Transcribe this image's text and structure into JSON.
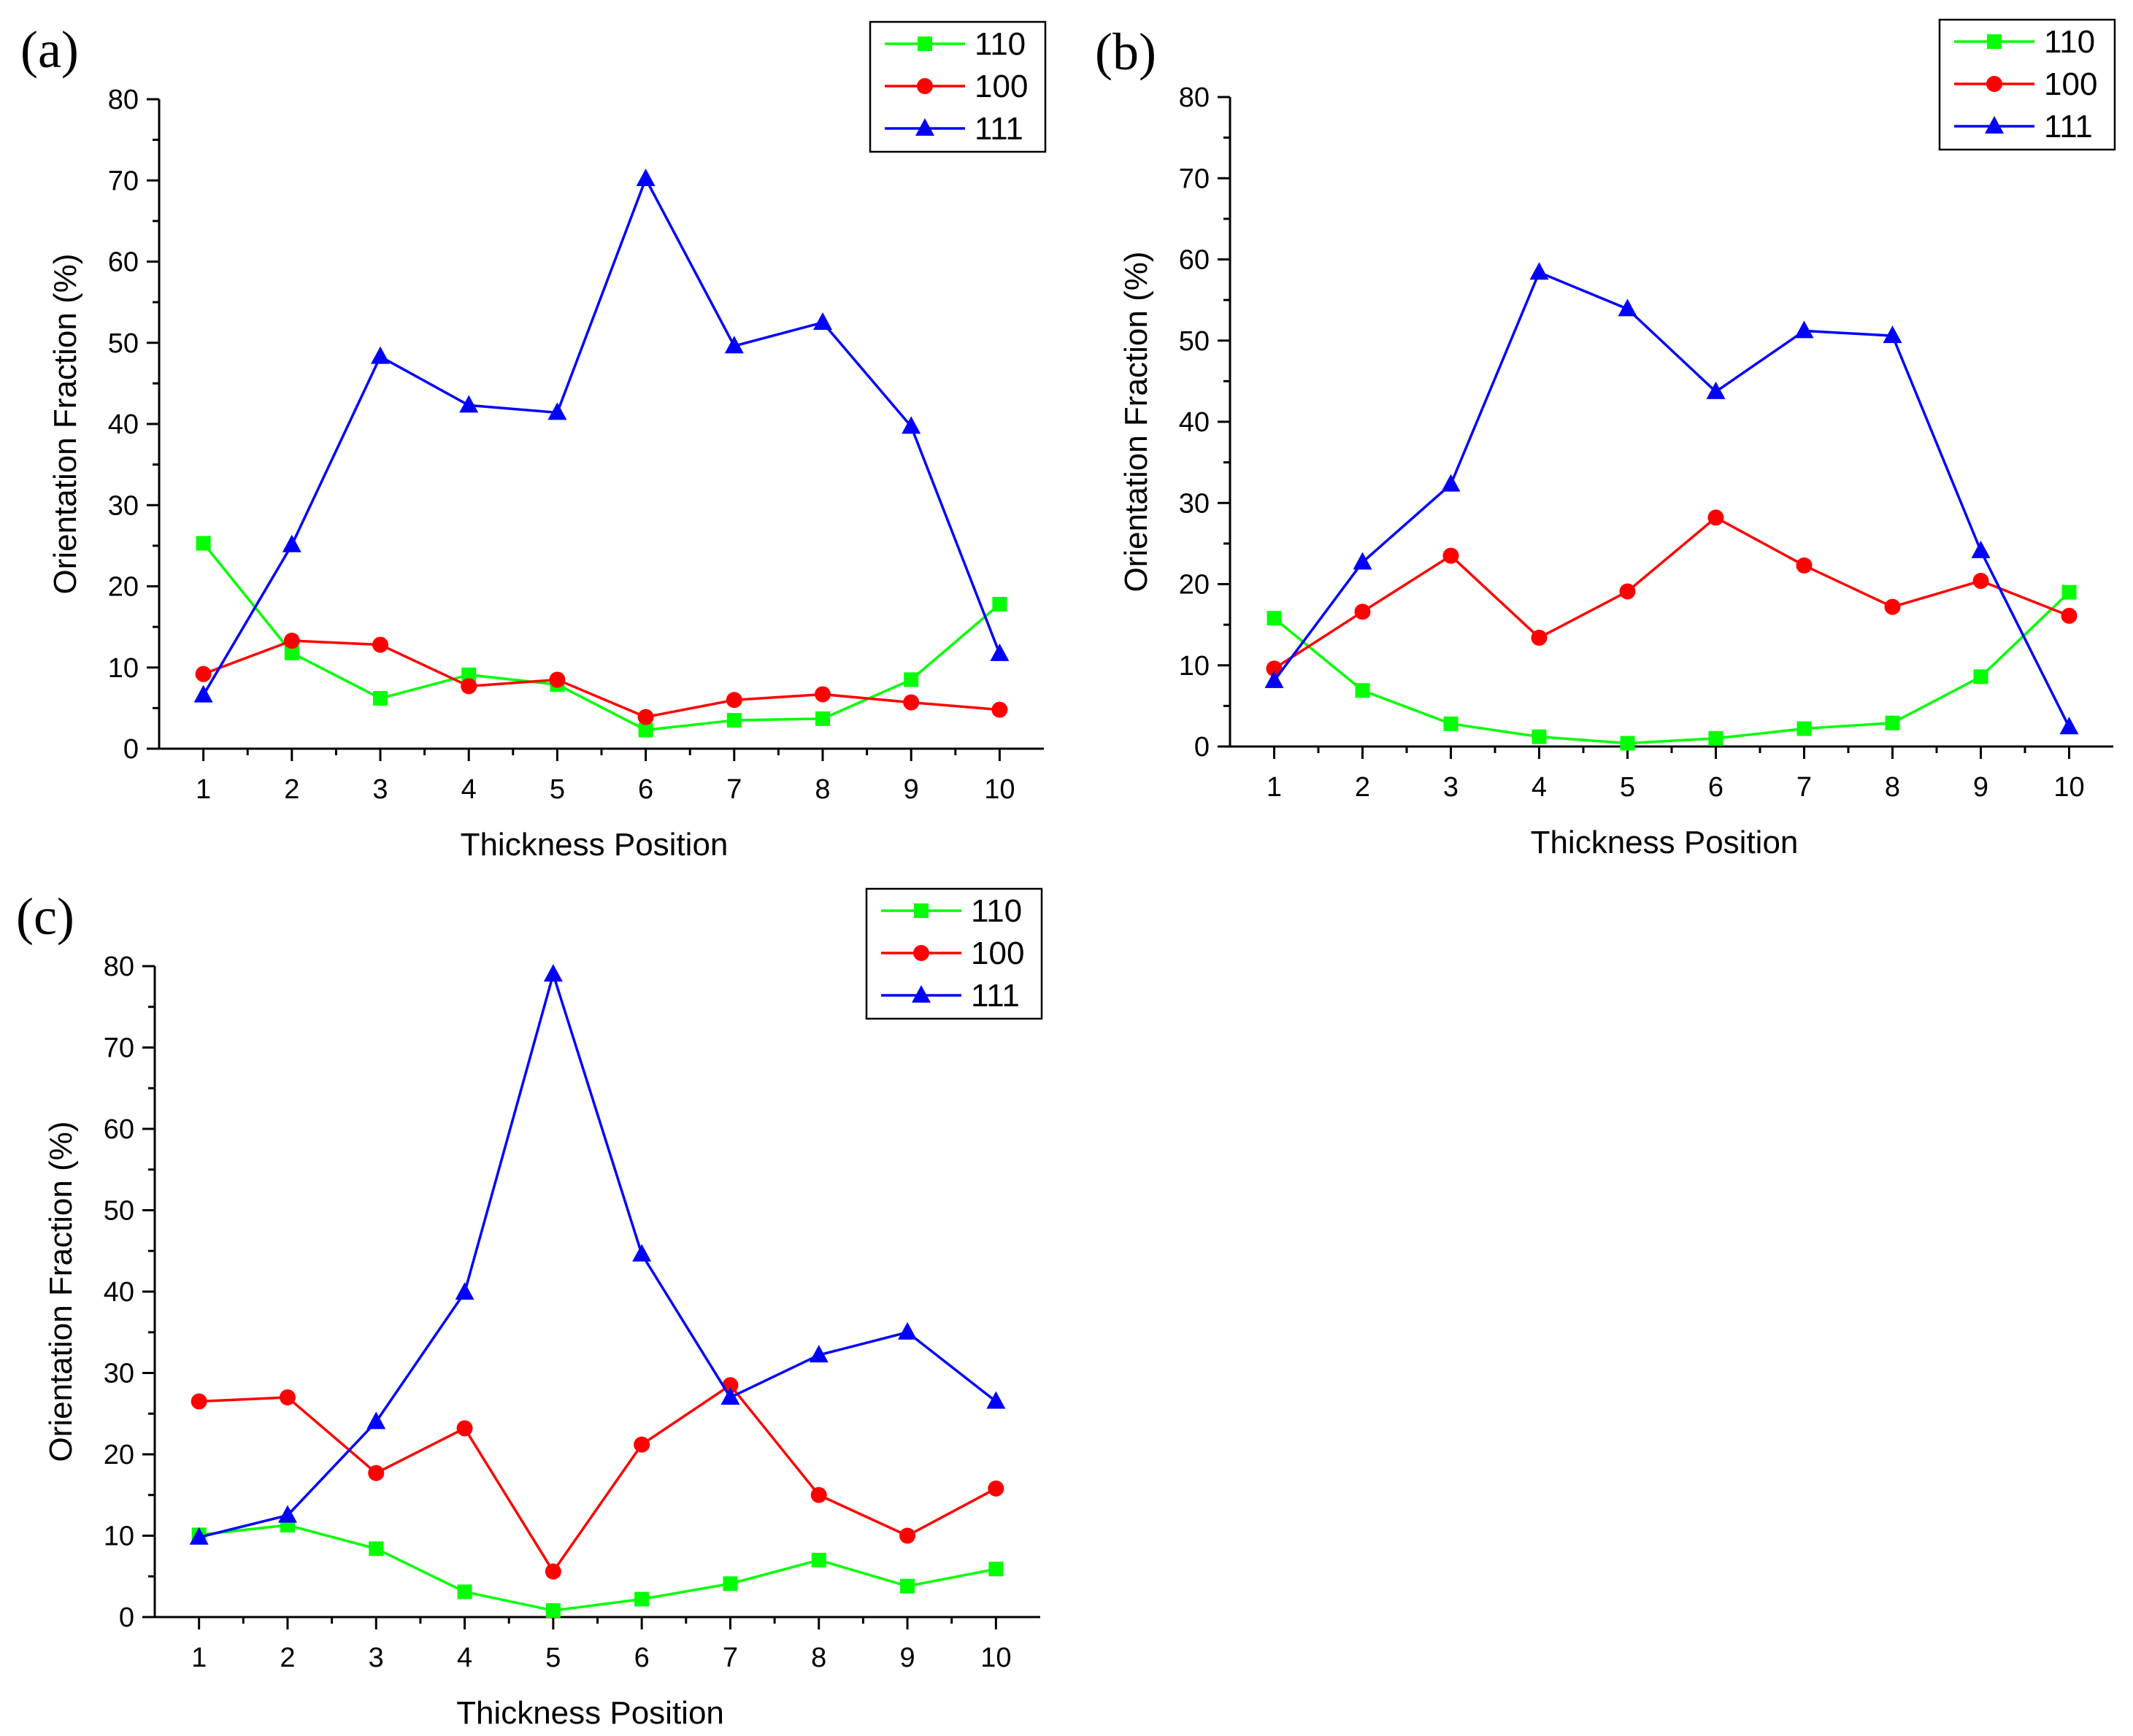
{
  "figure": {
    "panels": [
      "(a)",
      "(b)",
      "(c)"
    ]
  },
  "chart_data": [
    {
      "type": "line",
      "panel_label": "(a)",
      "title": "",
      "xlabel": "Thickness Position",
      "ylabel": "Orientation Fraction (%)",
      "x": [
        1,
        2,
        3,
        4,
        5,
        6,
        7,
        8,
        9,
        10
      ],
      "xlim": [
        0.5,
        10.5
      ],
      "ylim": [
        0,
        80
      ],
      "xticks": [
        "1",
        "2",
        "3",
        "4",
        "5",
        "6",
        "7",
        "8",
        "9",
        "10"
      ],
      "yticks": [
        "0",
        "10",
        "20",
        "30",
        "40",
        "50",
        "60",
        "70",
        "80"
      ],
      "grid": false,
      "legend_position": "top-right",
      "series": [
        {
          "name": "110",
          "color": "#00ff00",
          "marker": "square",
          "values": [
            25.3,
            11.8,
            6.2,
            9.1,
            7.9,
            2.3,
            3.5,
            3.7,
            8.5,
            17.8
          ]
        },
        {
          "name": "100",
          "color": "#ff0000",
          "marker": "circle",
          "values": [
            9.2,
            13.3,
            12.8,
            7.7,
            8.5,
            3.9,
            6.0,
            6.7,
            5.7,
            4.8
          ]
        },
        {
          "name": "111",
          "color": "#0000ff",
          "marker": "triangle",
          "values": [
            6.6,
            25.1,
            48.3,
            42.3,
            41.4,
            70.2,
            49.6,
            52.5,
            39.7,
            11.7
          ]
        }
      ]
    },
    {
      "type": "line",
      "panel_label": "(b)",
      "title": "",
      "xlabel": "Thickness Position",
      "ylabel": "Orientation Fraction (%)",
      "x": [
        1,
        2,
        3,
        4,
        5,
        6,
        7,
        8,
        9,
        10
      ],
      "xlim": [
        0.5,
        10.5
      ],
      "ylim": [
        0,
        80
      ],
      "xticks": [
        "1",
        "2",
        "3",
        "4",
        "5",
        "6",
        "7",
        "8",
        "9",
        "10"
      ],
      "yticks": [
        "0",
        "10",
        "20",
        "30",
        "40",
        "50",
        "60",
        "70",
        "80"
      ],
      "grid": false,
      "legend_position": "top-right",
      "series": [
        {
          "name": "110",
          "color": "#00ff00",
          "marker": "square",
          "values": [
            15.8,
            6.9,
            2.8,
            1.2,
            0.4,
            1.0,
            2.2,
            2.9,
            8.6,
            19.0
          ]
        },
        {
          "name": "100",
          "color": "#ff0000",
          "marker": "circle",
          "values": [
            9.6,
            16.6,
            23.5,
            13.4,
            19.1,
            28.2,
            22.3,
            17.2,
            20.4,
            16.1
          ]
        },
        {
          "name": "111",
          "color": "#0000ff",
          "marker": "triangle",
          "values": [
            8.1,
            22.7,
            32.3,
            58.4,
            53.9,
            43.7,
            51.2,
            50.6,
            24.1,
            2.4
          ]
        }
      ]
    },
    {
      "type": "line",
      "panel_label": "(c)",
      "title": "",
      "xlabel": "Thickness Position",
      "ylabel": "Orientation Fraction (%)",
      "x": [
        1,
        2,
        3,
        4,
        5,
        6,
        7,
        8,
        9,
        10
      ],
      "xlim": [
        0.5,
        10.5
      ],
      "ylim": [
        0,
        80
      ],
      "xticks": [
        "1",
        "2",
        "3",
        "4",
        "5",
        "6",
        "7",
        "8",
        "9",
        "10"
      ],
      "yticks": [
        "0",
        "10",
        "20",
        "30",
        "40",
        "50",
        "60",
        "70",
        "80"
      ],
      "grid": false,
      "legend_position": "top-right",
      "series": [
        {
          "name": "110",
          "color": "#00ff00",
          "marker": "square",
          "values": [
            10.1,
            11.3,
            8.4,
            3.1,
            0.8,
            2.2,
            4.1,
            7.0,
            3.8,
            5.9
          ]
        },
        {
          "name": "100",
          "color": "#ff0000",
          "marker": "circle",
          "values": [
            26.5,
            27.0,
            17.7,
            23.2,
            5.6,
            21.2,
            28.5,
            15.0,
            10.0,
            15.8
          ]
        },
        {
          "name": "111",
          "color": "#0000ff",
          "marker": "triangle",
          "values": [
            9.8,
            12.5,
            24.0,
            39.9,
            79.0,
            44.6,
            27.0,
            32.2,
            35.0,
            26.5
          ]
        }
      ]
    }
  ]
}
